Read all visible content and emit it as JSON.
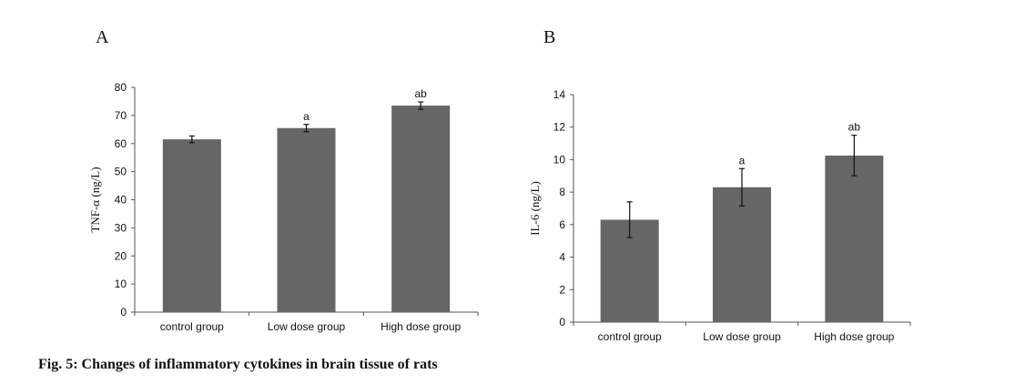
{
  "figure": {
    "caption": "Fig. 5: Changes of inflammatory cytokines in brain tissue of rats"
  },
  "colors": {
    "bar": "#666666",
    "axis": "#555555"
  },
  "chart_data": [
    {
      "panel": "A",
      "type": "bar",
      "categories": [
        "control group",
        "Low dose group",
        "High dose group"
      ],
      "values": [
        61.5,
        65.5,
        73.5
      ],
      "errors": [
        1.2,
        1.3,
        1.3
      ],
      "annotations": [
        "",
        "a",
        "ab"
      ],
      "ylabel": "TNF-α (ng/L)",
      "ylim": [
        0,
        80
      ],
      "yticks": [
        0,
        10,
        20,
        30,
        40,
        50,
        60,
        70,
        80
      ],
      "grid": false
    },
    {
      "panel": "B",
      "type": "bar",
      "categories": [
        "control group",
        "Low dose group",
        "High dose group"
      ],
      "values": [
        6.3,
        8.3,
        10.25
      ],
      "errors": [
        1.1,
        1.15,
        1.25
      ],
      "annotations": [
        "",
        "a",
        "ab"
      ],
      "ylabel": "IL-6 (ng/L)",
      "ylim": [
        0,
        14
      ],
      "yticks": [
        0,
        2,
        4,
        6,
        8,
        10,
        12,
        14
      ],
      "grid": false
    }
  ]
}
